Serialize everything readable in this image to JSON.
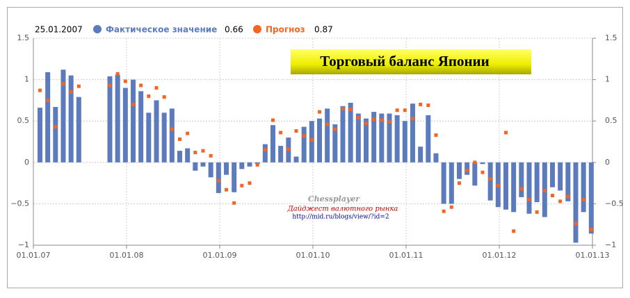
{
  "chart_data": {
    "type": "bar",
    "title": "Торговый баланс Японии",
    "header": {
      "date": "25.01.2007",
      "values": [
        "0.66",
        "0.87"
      ]
    },
    "watermark": [
      "Chessplayer",
      "Дайджест валютного рынка",
      "http://mid.ru/blogs/view/?id=2"
    ],
    "x": [
      "01.07",
      "02.07",
      "03.07",
      "04.07",
      "05.07",
      "06.07",
      "07.07",
      "08.07",
      "09.07",
      "10.07",
      "11.07",
      "12.07",
      "01.08",
      "02.08",
      "03.08",
      "04.08",
      "05.08",
      "06.08",
      "07.08",
      "08.08",
      "09.08",
      "10.08",
      "11.08",
      "12.08",
      "01.09",
      "02.09",
      "03.09",
      "04.09",
      "05.09",
      "06.09",
      "07.09",
      "08.09",
      "09.09",
      "10.09",
      "11.09",
      "12.09",
      "01.10",
      "02.10",
      "03.10",
      "04.10",
      "05.10",
      "06.10",
      "07.10",
      "08.10",
      "09.10",
      "10.10",
      "11.10",
      "12.10",
      "01.11",
      "02.11",
      "03.11",
      "04.11",
      "05.11",
      "06.11",
      "07.11",
      "08.11",
      "09.11",
      "10.11",
      "11.11",
      "12.11",
      "01.12",
      "02.12",
      "03.12",
      "04.12",
      "05.12",
      "06.12",
      "07.12",
      "08.12",
      "09.12",
      "10.12",
      "11.12",
      "12.12"
    ],
    "series": [
      {
        "name": "Фактическое значение",
        "color": "#5b7bbd",
        "kind": "bar",
        "values": [
          0.66,
          1.09,
          0.67,
          1.12,
          1.05,
          0.79,
          null,
          null,
          null,
          1.04,
          1.06,
          0.9,
          1.0,
          0.86,
          0.6,
          0.75,
          0.6,
          0.65,
          0.14,
          0.17,
          -0.1,
          -0.05,
          -0.18,
          -0.37,
          -0.15,
          -0.36,
          -0.08,
          -0.05,
          -0.02,
          0.22,
          0.45,
          0.2,
          0.3,
          0.07,
          0.43,
          0.5,
          0.53,
          0.65,
          0.46,
          0.68,
          0.72,
          0.59,
          0.53,
          0.61,
          0.59,
          0.59,
          0.57,
          0.5,
          0.71,
          0.19,
          0.57,
          0.11,
          -0.5,
          -0.5,
          -0.2,
          -0.15,
          -0.28,
          -0.02,
          -0.46,
          -0.54,
          -0.57,
          -0.6,
          -0.42,
          -0.62,
          -0.48,
          -0.66,
          -0.3,
          -0.34,
          -0.47,
          -0.97,
          -0.6,
          -0.86
        ]
      },
      {
        "name": "Прогноз",
        "color": "#f26522",
        "kind": "marker",
        "values": [
          0.87,
          0.75,
          0.43,
          0.95,
          0.85,
          0.92,
          null,
          null,
          null,
          0.93,
          1.07,
          0.98,
          0.7,
          0.93,
          0.8,
          0.9,
          0.79,
          0.4,
          0.28,
          0.35,
          0.12,
          0.14,
          0.08,
          -0.22,
          -0.33,
          -0.49,
          -0.28,
          -0.25,
          -0.03,
          0.15,
          0.51,
          0.36,
          0.16,
          0.38,
          0.32,
          0.27,
          0.61,
          0.46,
          0.4,
          0.65,
          0.64,
          0.54,
          0.47,
          0.52,
          0.51,
          0.49,
          0.63,
          0.63,
          0.53,
          0.7,
          0.69,
          0.33,
          -0.59,
          -0.54,
          -0.25,
          -0.1,
          0.0,
          -0.12,
          -0.2,
          -0.28,
          0.36,
          -0.83,
          -0.32,
          -0.45,
          -0.6,
          -0.34,
          -0.4,
          -0.47,
          -0.41,
          -0.74,
          -0.45,
          -0.81
        ]
      }
    ],
    "ylim": [
      -1,
      1.5
    ],
    "yticks": [
      {
        "value": -1,
        "label": "−1"
      },
      {
        "value": -0.5,
        "label": "−0.5"
      },
      0,
      0.5,
      1,
      1.5
    ],
    "y2lim": [
      -1,
      1.5
    ],
    "y2ticks": [
      {
        "value": -1,
        "label": "−1"
      },
      {
        "value": -0.5,
        "label": "−0.5"
      },
      0,
      0.5,
      1,
      1.5
    ],
    "xticks": [
      "01.01.07",
      "01.01.08",
      "01.01.09",
      "01.01.10",
      "01.01.11",
      "01.01.12",
      "01.01.13"
    ],
    "grid": true
  }
}
